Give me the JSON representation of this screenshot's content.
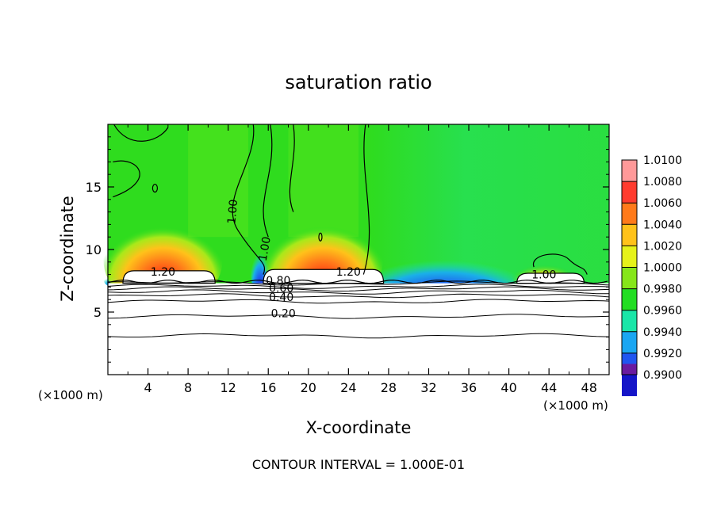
{
  "chart_data": {
    "type": "heatmap",
    "title": "saturation ratio",
    "xlabel": "X-coordinate",
    "ylabel": "Z-coordinate",
    "x_unit_left": "(×1000 m)",
    "x_unit_right": "(×1000 m)",
    "footer": "CONTOUR INTERVAL = 1.000E-01",
    "xlim": [
      0,
      50
    ],
    "ylim": [
      0,
      20
    ],
    "x_ticks": [
      4,
      8,
      12,
      16,
      20,
      24,
      28,
      32,
      36,
      40,
      44,
      48
    ],
    "y_ticks": [
      5,
      10,
      15
    ],
    "colorbar": {
      "range": [
        0.99,
        1.01
      ],
      "levels": [
        {
          "label": "1.0100",
          "color": "#ff9999"
        },
        {
          "label": "1.0080",
          "color": "#ff3b2e"
        },
        {
          "label": "1.0060",
          "color": "#ff7a1a"
        },
        {
          "label": "1.0040",
          "color": "#ffc21a"
        },
        {
          "label": "1.0020",
          "color": "#e6f21a"
        },
        {
          "label": "1.0000",
          "color": "#86e61a"
        },
        {
          "label": "0.9980",
          "color": "#22dd22"
        },
        {
          "label": "0.9960",
          "color": "#1ae6a8"
        },
        {
          "label": "0.9940",
          "color": "#1aa6f2"
        },
        {
          "label": "0.9920",
          "color": "#2055f0"
        },
        {
          "label": "0.9900",
          "color": "#1515c8"
        }
      ],
      "bottom_color": "#6a1aa0"
    },
    "contour_labels": [
      {
        "text": "1.20",
        "x": 5.5,
        "z": 7.9
      },
      {
        "text": "1.20",
        "x": 24.0,
        "z": 7.9
      },
      {
        "text": "1.00",
        "x": 43.5,
        "z": 7.7
      },
      {
        "text": "1.00",
        "x": 12.8,
        "z": 13.0
      },
      {
        "text": "1.00",
        "x": 16.0,
        "z": 10.0
      },
      {
        "text": "0.80",
        "x": 17.0,
        "z": 7.2
      },
      {
        "text": "0.60",
        "x": 17.3,
        "z": 6.6
      },
      {
        "text": "0.40",
        "x": 17.3,
        "z": 5.9
      },
      {
        "text": "0.20",
        "x": 17.5,
        "z": 4.6
      }
    ],
    "contour_levels_z": [
      3.1,
      4.65,
      5.85,
      6.3,
      6.6,
      6.85,
      7.05,
      7.3
    ],
    "supersaturated_zones": [
      {
        "x_center": 5.5,
        "z_top": 12.5
      },
      {
        "x_center": 21.5,
        "z_top": 12.5
      },
      {
        "x_center": 43.5,
        "z_top": 9.0
      }
    ],
    "subsaturated_zone": {
      "x_from": 27,
      "x_to": 40
    }
  }
}
